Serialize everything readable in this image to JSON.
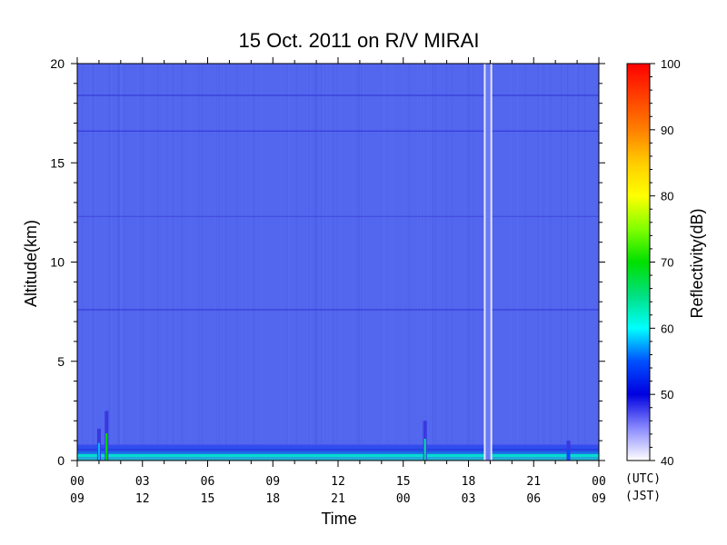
{
  "chart_data": {
    "type": "heatmap",
    "title": "15 Oct. 2011  on R/V MIRAI",
    "xlabel": "Time",
    "ylabel": "Altitude(km)",
    "colorbar_label": "Reflectivity(dB)",
    "xlim": [
      0,
      24
    ],
    "ylim": [
      0,
      20
    ],
    "x_ticks_utc": [
      "00",
      "03",
      "06",
      "09",
      "12",
      "15",
      "18",
      "21",
      "00"
    ],
    "x_ticks_jst": [
      "09",
      "12",
      "15",
      "18",
      "21",
      "00",
      "03",
      "06",
      "09"
    ],
    "x_tick_hours": [
      0,
      3,
      6,
      9,
      12,
      15,
      18,
      21,
      24
    ],
    "x_timezone_labels": [
      "(UTC)",
      "(JST)"
    ],
    "y_ticks": [
      0,
      5,
      10,
      15,
      20
    ],
    "colorbar_ticks": [
      40,
      50,
      60,
      70,
      80,
      90,
      100
    ],
    "color_range": [
      40,
      100
    ],
    "background_reflectivity": 47,
    "horizontal_lines_km": [
      7.6,
      12.3,
      16.6,
      18.4
    ],
    "data_gap_hours": [
      18.75,
      19.05
    ],
    "echoes": [
      {
        "hour": 1.0,
        "top_km": 1.6,
        "peak": 58
      },
      {
        "hour": 1.35,
        "top_km": 2.5,
        "peak": 70
      },
      {
        "hour": 16.0,
        "top_km": 2.0,
        "peak": 64
      },
      {
        "hour": 22.6,
        "top_km": 1.0,
        "peak": 55
      }
    ],
    "surface_layer": {
      "top_km": 0.8,
      "peak": 62
    },
    "grid": false,
    "legend": "colorbar-right"
  }
}
